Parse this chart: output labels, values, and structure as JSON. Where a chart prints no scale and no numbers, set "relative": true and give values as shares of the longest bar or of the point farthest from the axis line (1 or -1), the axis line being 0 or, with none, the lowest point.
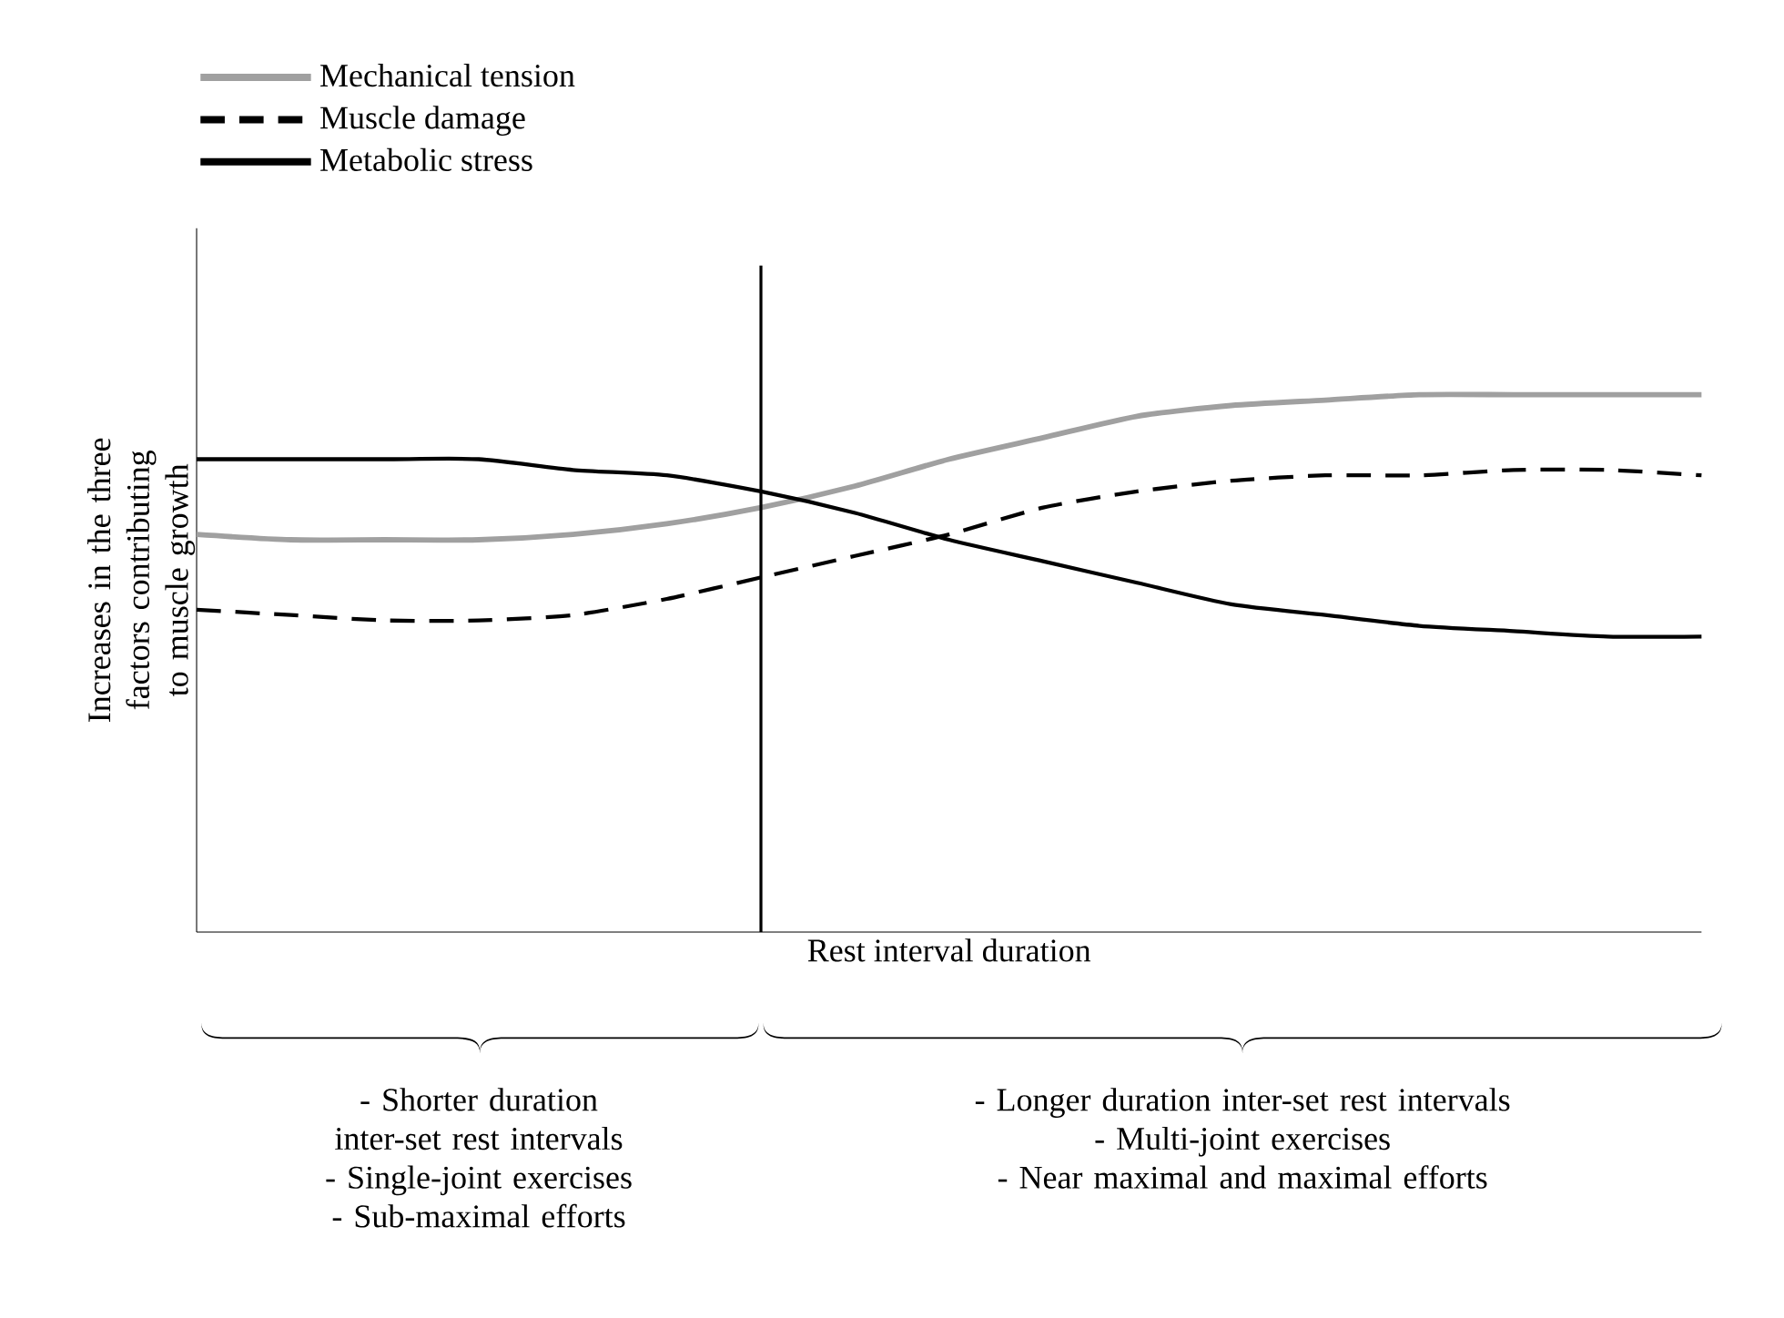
{
  "chart_data": {
    "type": "line",
    "relative": true,
    "xlabel": "Rest interval duration",
    "ylabel": "Increases in the three factors contributing to muscle growth",
    "categories": [
      null,
      null,
      null,
      null,
      null,
      null,
      null,
      null,
      null,
      null,
      null,
      null,
      null,
      null,
      null,
      null,
      null
    ],
    "series": [
      {
        "name": "Mechanical tension",
        "color": "#a0a0a0",
        "line_style": "solid",
        "values": [
          0.74,
          0.73,
          0.73,
          0.73,
          0.74,
          0.76,
          0.79,
          0.83,
          0.88,
          0.92,
          0.96,
          0.98,
          0.99,
          1.0,
          1.0,
          1.0,
          1.0
        ]
      },
      {
        "name": "Muscle damage",
        "color": "#000000",
        "line_style": "dashed",
        "values": [
          0.6,
          0.59,
          0.58,
          0.58,
          0.59,
          0.62,
          0.66,
          0.7,
          0.74,
          0.79,
          0.82,
          0.84,
          0.85,
          0.85,
          0.86,
          0.86,
          0.85
        ]
      },
      {
        "name": "Metabolic stress",
        "color": "#000000",
        "line_style": "solid",
        "values": [
          0.88,
          0.88,
          0.88,
          0.88,
          0.86,
          0.85,
          0.82,
          0.78,
          0.73,
          0.69,
          0.65,
          0.61,
          0.59,
          0.57,
          0.56,
          0.55,
          0.55
        ]
      }
    ],
    "legend": "top left",
    "marker": "none",
    "annotations": [
      "- Shorter duration inter-set rest intervals",
      "- Single-joint exercises",
      "- Sub-maximal efforts",
      "- Longer duration inter-set rest intervals",
      "- Multi-joint exercises",
      "- Near maximal and maximal efforts"
    ]
  }
}
